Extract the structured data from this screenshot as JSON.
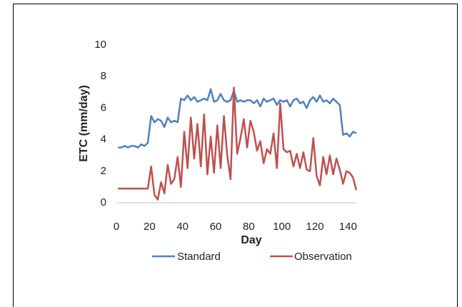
{
  "chart_data": {
    "type": "line",
    "x_label": "Day",
    "y_label": "ETC (mm/day)",
    "x": [
      1,
      3,
      5,
      7,
      9,
      11,
      13,
      15,
      17,
      19,
      21,
      23,
      25,
      27,
      29,
      31,
      33,
      35,
      37,
      39,
      41,
      43,
      45,
      47,
      49,
      51,
      53,
      55,
      57,
      59,
      61,
      63,
      65,
      67,
      69,
      71,
      73,
      75,
      77,
      79,
      81,
      83,
      85,
      87,
      89,
      91,
      93,
      95,
      97,
      99,
      101,
      103,
      105,
      107,
      109,
      111,
      113,
      115,
      117,
      119,
      121,
      123,
      125,
      127,
      129,
      131,
      133,
      135,
      137,
      139,
      141,
      143,
      145
    ],
    "series": [
      {
        "name": "Standard",
        "color": "#4f81bd",
        "values": [
          3.5,
          3.5,
          3.6,
          3.5,
          3.6,
          3.6,
          3.5,
          3.7,
          3.6,
          3.8,
          5.5,
          5.1,
          5.3,
          5.2,
          4.8,
          5.4,
          5.1,
          5.2,
          5.1,
          6.6,
          6.5,
          6.8,
          6.5,
          6.7,
          6.4,
          6.5,
          6.6,
          6.5,
          7.2,
          6.4,
          6.5,
          6.9,
          6.5,
          6.4,
          6.5,
          7.1,
          6.4,
          6.5,
          6.4,
          6.5,
          6.5,
          6.3,
          6.5,
          6.1,
          6.6,
          6.4,
          6.5,
          6.6,
          6.2,
          6.5,
          6.4,
          6.5,
          6.1,
          6.5,
          6.6,
          6.3,
          6.4,
          6.0,
          6.5,
          6.7,
          6.4,
          6.8,
          6.4,
          6.5,
          6.3,
          6.6,
          6.4,
          6.2,
          4.3,
          4.4,
          4.2,
          4.5,
          4.4
        ]
      },
      {
        "name": "Observation",
        "color": "#c0504d",
        "values": [
          0.9,
          0.9,
          0.9,
          0.9,
          0.9,
          0.9,
          0.9,
          0.9,
          0.9,
          0.9,
          2.3,
          0.5,
          0.2,
          1.3,
          0.6,
          2.4,
          1.2,
          1.5,
          2.9,
          1.0,
          4.5,
          2.2,
          5.4,
          2.8,
          5.0,
          2.3,
          5.6,
          1.8,
          4.2,
          1.9,
          4.9,
          2.2,
          5.5,
          3.0,
          1.5,
          7.3,
          3.1,
          4.1,
          5.3,
          3.5,
          5.2,
          4.5,
          3.3,
          3.9,
          2.5,
          3.4,
          3.1,
          4.4,
          2.2,
          6.3,
          3.4,
          3.2,
          3.3,
          2.3,
          3.1,
          2.2,
          3.2,
          2.1,
          2.0,
          4.1,
          1.7,
          1.1,
          2.9,
          1.8,
          3.0,
          1.8,
          2.8,
          2.1,
          1.2,
          2.0,
          1.9,
          1.6,
          0.8
        ]
      }
    ],
    "xlim": [
      0,
      145
    ],
    "ylim": [
      0,
      10
    ],
    "xticks": [
      0,
      20,
      40,
      60,
      80,
      100,
      120,
      140
    ],
    "yticks": [
      0,
      2,
      4,
      6,
      8,
      10
    ],
    "legend": "bottom"
  }
}
